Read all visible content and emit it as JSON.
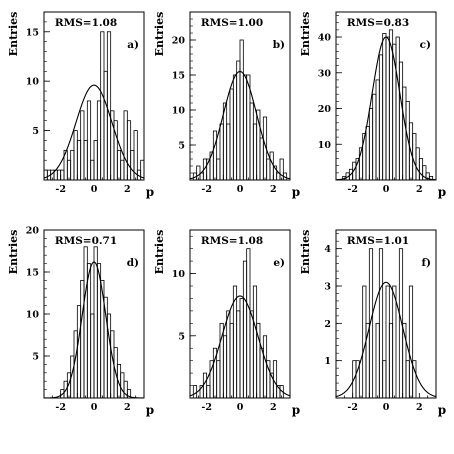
{
  "chart_data": [
    {
      "type": "histogram",
      "panel_label": "a)",
      "annotation": "RMS=1.08",
      "xlabel": "p",
      "ylabel": "Entries",
      "xlim": [
        -3,
        3
      ],
      "ylim": [
        0,
        17
      ],
      "xticks": [
        -2,
        0,
        2
      ],
      "xtick_labels": [
        "-2",
        "0",
        "2"
      ],
      "yticks": [
        5,
        10,
        15
      ],
      "ytick_labels": [
        "5",
        "10",
        "15"
      ],
      "bin_width": 0.2,
      "bin_edges_start": -3,
      "counts": [
        1,
        1,
        1,
        1,
        1,
        1,
        3,
        2,
        3,
        5,
        4,
        7,
        4,
        8,
        2,
        4,
        8,
        15,
        11,
        15,
        7,
        6,
        3,
        2,
        7,
        6,
        3,
        5,
        1,
        2
      ],
      "fit": {
        "name": "gaussian",
        "amplitude": 9.6,
        "mean": 0.0,
        "sigma": 1.08
      }
    },
    {
      "type": "histogram",
      "panel_label": "b)",
      "annotation": "RMS=1.00",
      "xlabel": "p",
      "ylabel": "Entries",
      "xlim": [
        -3,
        3
      ],
      "ylim": [
        0,
        24
      ],
      "xticks": [
        -2,
        0,
        2
      ],
      "xtick_labels": [
        "-2",
        "0",
        "2"
      ],
      "yticks": [
        5,
        10,
        15,
        20
      ],
      "ytick_labels": [
        "5",
        "10",
        "15",
        "20"
      ],
      "bin_width": 0.2,
      "bin_edges_start": -3,
      "counts": [
        0,
        1,
        2,
        1,
        3,
        3,
        4,
        7,
        3,
        8,
        11,
        8,
        13,
        15,
        17,
        20,
        15,
        15,
        11,
        8,
        10,
        6,
        9,
        3,
        4,
        2,
        1,
        3,
        1,
        0
      ],
      "fit": {
        "name": "gaussian",
        "amplitude": 15.5,
        "mean": 0.0,
        "sigma": 1.0
      }
    },
    {
      "type": "histogram",
      "panel_label": "c)",
      "annotation": "RMS=0.83",
      "xlabel": "p",
      "ylabel": "Entries",
      "xlim": [
        -3,
        3
      ],
      "ylim": [
        0,
        47
      ],
      "xticks": [
        -2,
        0,
        2
      ],
      "xtick_labels": [
        "-2",
        "0",
        "2"
      ],
      "yticks": [
        10,
        20,
        30,
        40
      ],
      "ytick_labels": [
        "10",
        "20",
        "30",
        "40"
      ],
      "bin_width": 0.2,
      "bin_edges_start": -3,
      "counts": [
        0,
        0,
        1,
        2,
        3,
        5,
        6,
        9,
        13,
        15,
        20,
        24,
        28,
        35,
        41,
        40,
        42,
        38,
        40,
        33,
        26,
        22,
        16,
        13,
        9,
        6,
        4,
        2,
        1,
        0
      ],
      "fit": {
        "name": "gaussian",
        "amplitude": 40,
        "mean": 0.0,
        "sigma": 0.83
      }
    },
    {
      "type": "histogram",
      "panel_label": "d)",
      "annotation": "RMS=0.71",
      "xlabel": "p",
      "ylabel": "Entries",
      "xlim": [
        -3,
        3
      ],
      "ylim": [
        0,
        20
      ],
      "xticks": [
        -2,
        0,
        2
      ],
      "xtick_labels": [
        "-2",
        "0",
        "2"
      ],
      "yticks": [
        5,
        10,
        15,
        20
      ],
      "ytick_labels": [
        "5",
        "10",
        "15",
        "20"
      ],
      "bin_width": 0.2,
      "bin_edges_start": -3,
      "counts": [
        0,
        0,
        0,
        0,
        0,
        1,
        2,
        3,
        5,
        8,
        11,
        14,
        18,
        16,
        10,
        18,
        16,
        14,
        12,
        10,
        8,
        6,
        4,
        3,
        2,
        1,
        0,
        0,
        0,
        0
      ],
      "fit": {
        "name": "gaussian",
        "amplitude": 16.2,
        "mean": 0.0,
        "sigma": 0.71
      }
    },
    {
      "type": "histogram",
      "panel_label": "e)",
      "annotation": "RMS=1.08",
      "xlabel": "p",
      "ylabel": "Entries",
      "xlim": [
        -3,
        3
      ],
      "ylim": [
        0,
        13.5
      ],
      "xticks": [
        -2,
        0,
        2
      ],
      "xtick_labels": [
        "-2",
        "0",
        "2"
      ],
      "yticks": [
        5,
        10
      ],
      "ytick_labels": [
        "5",
        "10"
      ],
      "bin_width": 0.2,
      "bin_edges_start": -3,
      "counts": [
        0,
        1,
        0,
        1,
        2,
        1,
        3,
        4,
        3,
        6,
        5,
        7,
        6,
        9,
        7,
        8,
        11,
        12,
        7,
        9,
        6,
        4,
        5,
        3,
        2,
        3,
        1,
        1,
        0,
        0
      ],
      "fit": {
        "name": "gaussian",
        "amplitude": 8.2,
        "mean": 0.0,
        "sigma": 1.08
      }
    },
    {
      "type": "histogram",
      "panel_label": "f)",
      "annotation": "RMS=1.01",
      "xlabel": "p",
      "ylabel": "Entries",
      "xlim": [
        -3,
        3
      ],
      "ylim": [
        0,
        4.5
      ],
      "xticks": [
        -2,
        0,
        2
      ],
      "xtick_labels": [
        "-2",
        "0",
        "2"
      ],
      "yticks": [
        1,
        2,
        3,
        4
      ],
      "ytick_labels": [
        "1",
        "2",
        "3",
        "4"
      ],
      "bin_width": 0.2,
      "bin_edges_start": -3,
      "counts": [
        0,
        0,
        0,
        0,
        0,
        1,
        1,
        0,
        3,
        2,
        4,
        0,
        2,
        4,
        1,
        3,
        2,
        3,
        0,
        4,
        2,
        1,
        3,
        1,
        0,
        0,
        0,
        0,
        0,
        0
      ],
      "fit": {
        "name": "gaussian",
        "amplitude": 3.1,
        "mean": 0.0,
        "sigma": 1.01
      }
    }
  ]
}
